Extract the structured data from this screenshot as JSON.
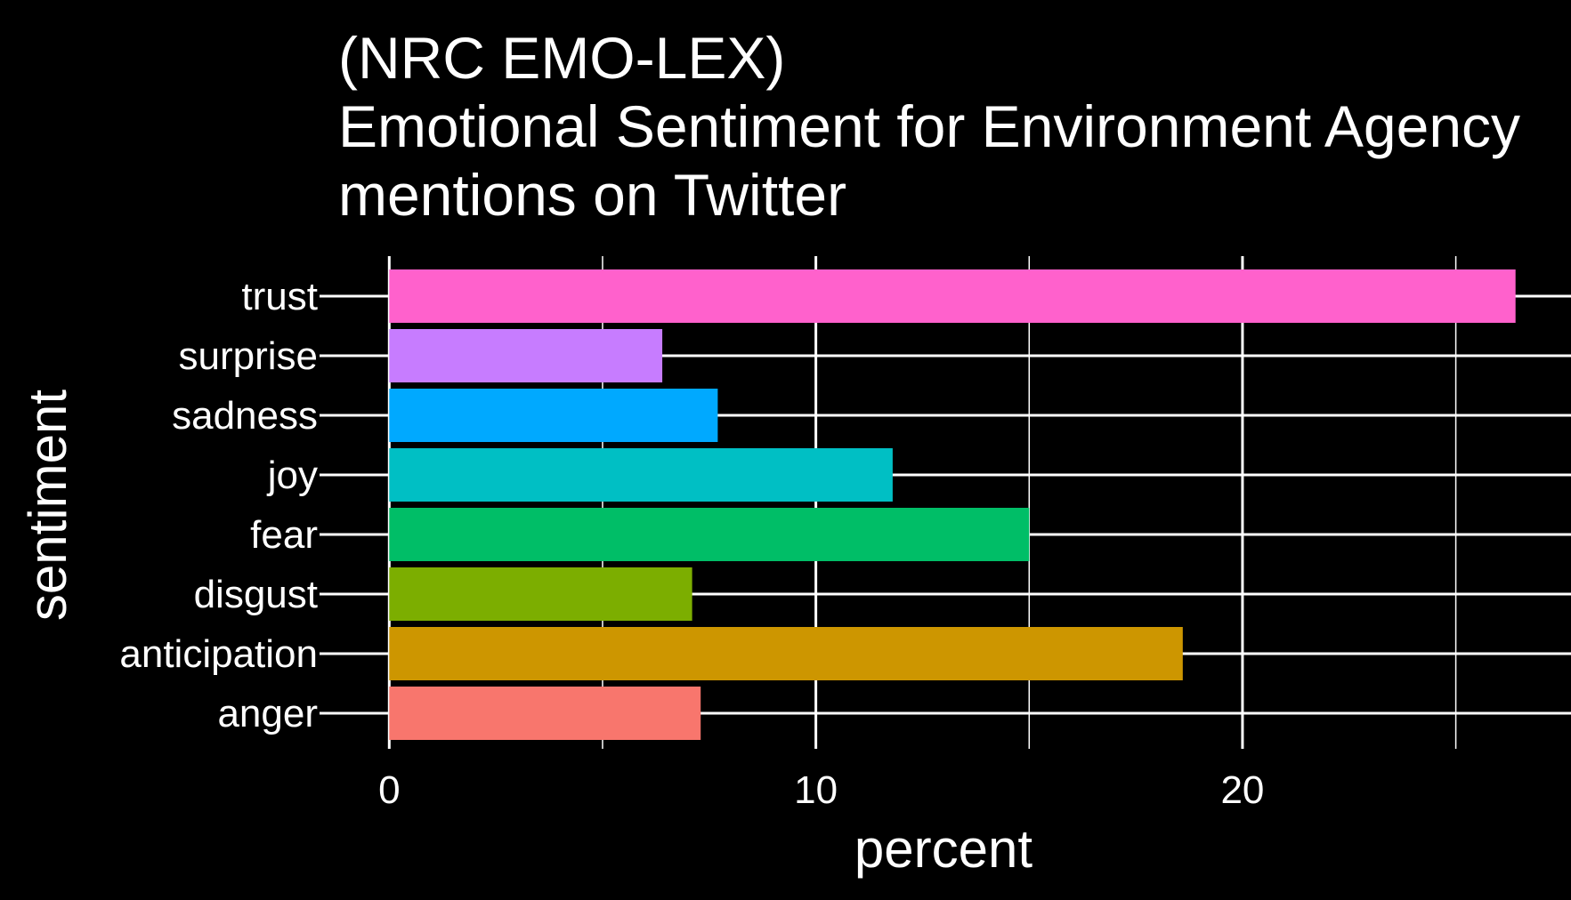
{
  "chart_data": {
    "type": "bar",
    "orientation": "horizontal",
    "title_lines": [
      "(NRC EMO-LEX)",
      "Emotional Sentiment for Environment Agency",
      "mentions on Twitter"
    ],
    "xlabel": "percent",
    "ylabel": "sentiment",
    "categories": [
      "anger",
      "anticipation",
      "disgust",
      "fear",
      "joy",
      "sadness",
      "surprise",
      "trust"
    ],
    "values": [
      7.3,
      18.6,
      7.1,
      15.0,
      11.8,
      7.7,
      6.4,
      26.4
    ],
    "colors": [
      "#F8766D",
      "#CD9600",
      "#7CAE00",
      "#00BE67",
      "#00BFC4",
      "#00A9FF",
      "#C77CFF",
      "#FF61CC"
    ],
    "x_ticks": [
      0,
      10,
      20
    ],
    "x_minor_ticks": [
      5,
      15,
      25
    ],
    "xlim": [
      -1.3,
      27.7
    ],
    "grid": true,
    "legend": "none",
    "background": "#000000",
    "text_color": "#ffffff"
  }
}
